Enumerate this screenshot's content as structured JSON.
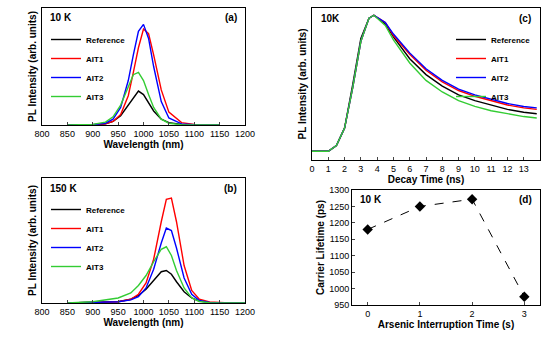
{
  "chart_data": [
    {
      "type": "line",
      "title": "10 K",
      "annotations": [
        "(a)"
      ],
      "x_label": "Wavelength (nm)",
      "y_label": "PL Intensity (arb. units)",
      "x": [
        850,
        900,
        925,
        940,
        955,
        970,
        980,
        990,
        1000,
        1010,
        1020,
        1035,
        1050,
        1075,
        1100,
        1150
      ],
      "series": [
        {
          "name": "Reference",
          "color": "#000000",
          "values": [
            0,
            0.002,
            0.01,
            0.03,
            0.08,
            0.17,
            0.24,
            0.29,
            0.26,
            0.19,
            0.12,
            0.05,
            0.02,
            0.005,
            0.002,
            0
          ]
        },
        {
          "name": "AIT1",
          "color": "#ff0000",
          "values": [
            0,
            0.002,
            0.01,
            0.03,
            0.09,
            0.25,
            0.45,
            0.66,
            0.82,
            0.78,
            0.6,
            0.3,
            0.11,
            0.02,
            0.005,
            0
          ]
        },
        {
          "name": "AIT2",
          "color": "#0000ff",
          "values": [
            0,
            0.002,
            0.015,
            0.05,
            0.15,
            0.38,
            0.6,
            0.8,
            0.86,
            0.74,
            0.5,
            0.2,
            0.06,
            0.01,
            0.003,
            0
          ]
        },
        {
          "name": "AIT3",
          "color": "#33cc33",
          "values": [
            0,
            0.005,
            0.025,
            0.07,
            0.17,
            0.32,
            0.43,
            0.45,
            0.38,
            0.26,
            0.15,
            0.05,
            0.015,
            0.003,
            0.001,
            0
          ]
        }
      ],
      "xlim": [
        800,
        1200
      ],
      "xticks": [
        800,
        850,
        900,
        950,
        1000,
        1050,
        1100,
        1150,
        1200
      ],
      "ylim": [
        0,
        1
      ],
      "tick_labels": "x",
      "grid": false,
      "legend": "upper left"
    },
    {
      "type": "line",
      "title": "150 K",
      "annotations": [
        "(b)"
      ],
      "x_label": "Wavelength (nm)",
      "y_label": "PL Intensity (arb. units)",
      "x": [
        850,
        900,
        950,
        975,
        990,
        1005,
        1020,
        1035,
        1045,
        1055,
        1065,
        1080,
        1095,
        1110,
        1130,
        1160,
        1200
      ],
      "series": [
        {
          "name": "Reference",
          "color": "#000000",
          "values": [
            0,
            0.002,
            0.01,
            0.03,
            0.06,
            0.11,
            0.18,
            0.25,
            0.26,
            0.23,
            0.17,
            0.09,
            0.04,
            0.015,
            0.005,
            0.001,
            0
          ]
        },
        {
          "name": "AIT1",
          "color": "#ff0000",
          "values": [
            0,
            0.002,
            0.01,
            0.03,
            0.07,
            0.16,
            0.35,
            0.65,
            0.83,
            0.84,
            0.65,
            0.3,
            0.1,
            0.03,
            0.008,
            0.002,
            0
          ]
        },
        {
          "name": "AIT2",
          "color": "#0000ff",
          "values": [
            0,
            0.002,
            0.01,
            0.025,
            0.05,
            0.12,
            0.27,
            0.48,
            0.6,
            0.58,
            0.44,
            0.2,
            0.07,
            0.02,
            0.005,
            0.001,
            0
          ]
        },
        {
          "name": "AIT3",
          "color": "#33cc33",
          "values": [
            0,
            0.01,
            0.04,
            0.08,
            0.14,
            0.22,
            0.33,
            0.43,
            0.45,
            0.38,
            0.26,
            0.12,
            0.04,
            0.012,
            0.003,
            0.001,
            0
          ]
        }
      ],
      "xlim": [
        800,
        1200
      ],
      "xticks": [
        800,
        850,
        900,
        950,
        1000,
        1050,
        1100,
        1150,
        1200
      ],
      "ylim": [
        0,
        1
      ],
      "tick_labels": "x",
      "grid": false,
      "legend": "upper left"
    },
    {
      "type": "line",
      "title": "10K",
      "annotations": [
        "(c)"
      ],
      "x_label": "Decay Time (ns)",
      "y_label": "PL Intensity (arb. units)",
      "x": [
        0,
        1,
        1.5,
        2,
        2.5,
        3,
        3.5,
        3.8,
        4.5,
        5,
        6,
        7,
        8,
        9,
        10,
        11,
        12,
        13,
        13.8
      ],
      "series": [
        {
          "name": "Reference",
          "color": "#000000",
          "values": [
            0.06,
            0.06,
            0.1,
            0.22,
            0.52,
            0.84,
            0.98,
            1.0,
            0.94,
            0.85,
            0.7,
            0.59,
            0.51,
            0.45,
            0.41,
            0.38,
            0.35,
            0.33,
            0.32
          ]
        },
        {
          "name": "AIT1",
          "color": "#ff0000",
          "values": [
            0.06,
            0.06,
            0.1,
            0.22,
            0.5,
            0.82,
            0.98,
            1.0,
            0.95,
            0.86,
            0.73,
            0.62,
            0.54,
            0.48,
            0.44,
            0.41,
            0.38,
            0.36,
            0.35
          ]
        },
        {
          "name": "AIT2",
          "color": "#0000ff",
          "values": [
            0.06,
            0.06,
            0.1,
            0.22,
            0.5,
            0.82,
            0.98,
            1.0,
            0.95,
            0.87,
            0.74,
            0.63,
            0.55,
            0.49,
            0.45,
            0.42,
            0.39,
            0.37,
            0.36
          ]
        },
        {
          "name": "AIT3",
          "color": "#33cc33",
          "values": [
            0.06,
            0.06,
            0.1,
            0.22,
            0.5,
            0.82,
            0.98,
            1.0,
            0.93,
            0.83,
            0.67,
            0.55,
            0.47,
            0.41,
            0.37,
            0.34,
            0.32,
            0.3,
            0.29
          ]
        }
      ],
      "xlim": [
        0,
        14
      ],
      "xticks": [
        0,
        1,
        2,
        3,
        4,
        5,
        6,
        7,
        8,
        9,
        10,
        11,
        12,
        13
      ],
      "ylim": [
        0,
        1.05
      ],
      "tick_labels": "x",
      "grid": false,
      "legend": "upper right"
    },
    {
      "type": "line",
      "title": "10 K",
      "annotations": [
        "(d)"
      ],
      "x_label": "Arsenic Interruption Time (s)",
      "y_label": "Carrier Lifetime (ps)",
      "x": [
        0,
        1,
        2,
        3
      ],
      "values": [
        1180,
        1250,
        1272,
        975
      ],
      "color": "#000000",
      "marker": "diamond",
      "line_style": "dash",
      "xlim": [
        -0.3,
        3.3
      ],
      "xticks": [
        0,
        1,
        2,
        3
      ],
      "ylim": [
        950,
        1300
      ],
      "yticks": [
        950,
        1000,
        1050,
        1100,
        1150,
        1200,
        1250,
        1300
      ],
      "grid": false
    }
  ]
}
